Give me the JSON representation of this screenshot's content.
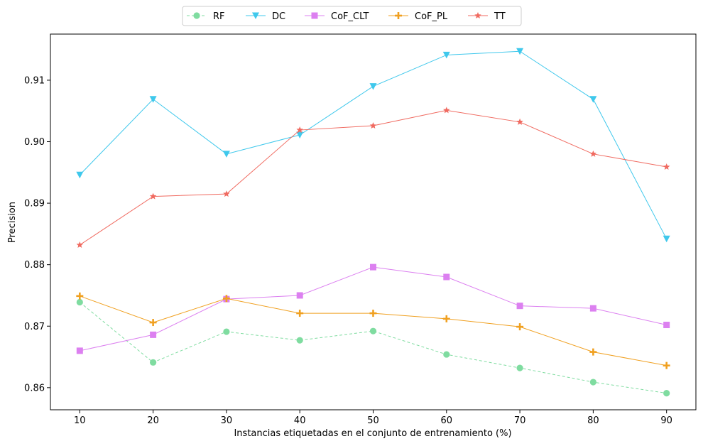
{
  "chart_data": {
    "type": "line",
    "title": "",
    "xlabel": "Instancias etiquetadas en el conjunto de entrenamiento (%)",
    "ylabel": "Precision",
    "x": [
      10,
      20,
      30,
      40,
      50,
      60,
      70,
      80,
      90
    ],
    "xlim": [
      6,
      94
    ],
    "ylim": [
      0.8564,
      0.9175
    ],
    "xticks": [
      10,
      20,
      30,
      40,
      50,
      60,
      70,
      80,
      90
    ],
    "yticks": [
      0.86,
      0.87,
      0.88,
      0.89,
      0.9,
      0.91
    ],
    "ytick_labels": [
      "0.86",
      "0.87",
      "0.88",
      "0.89",
      "0.90",
      "0.91"
    ],
    "grid": false,
    "legend_position": "top-center, above plot",
    "series": [
      {
        "name": "RF",
        "color": "#7fdca0",
        "marker": "circle",
        "dashed": true,
        "values": [
          0.8739,
          0.8641,
          0.8691,
          0.8677,
          0.8692,
          0.8654,
          0.8632,
          0.8609,
          0.8591
        ]
      },
      {
        "name": "DC",
        "color": "#3fc8ec",
        "marker": "triangle-down",
        "dashed": false,
        "values": [
          0.8946,
          0.9069,
          0.898,
          0.9011,
          0.909,
          0.9141,
          0.9147,
          0.9069,
          0.8842
        ]
      },
      {
        "name": "CoF_CLT",
        "color": "#dc80f0",
        "marker": "square",
        "dashed": false,
        "values": [
          0.866,
          0.8686,
          0.8744,
          0.875,
          0.8796,
          0.878,
          0.8733,
          0.8729,
          0.8702
        ]
      },
      {
        "name": "CoF_PL",
        "color": "#f0a020",
        "marker": "plus",
        "dashed": false,
        "values": [
          0.8749,
          0.8706,
          0.8745,
          0.8721,
          0.8721,
          0.8712,
          0.8699,
          0.8658,
          0.8636
        ]
      },
      {
        "name": "TT",
        "color": "#f06a60",
        "marker": "star",
        "dashed": false,
        "values": [
          0.8832,
          0.8911,
          0.8915,
          0.9019,
          0.9026,
          0.9051,
          0.9032,
          0.898,
          0.8959
        ]
      }
    ]
  }
}
